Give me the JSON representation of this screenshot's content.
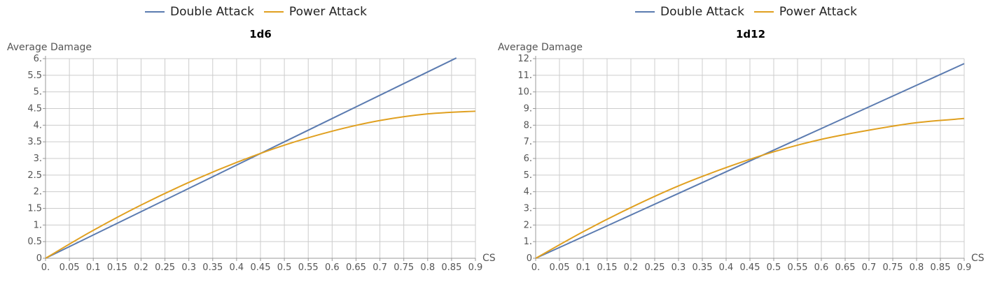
{
  "colors": {
    "double_attack": "#5b7bb0",
    "power_attack": "#e0a020",
    "grid": "#cccccc",
    "axis": "#999999"
  },
  "chart_data": [
    {
      "type": "line",
      "title": "1d6",
      "xlabel": "CS",
      "ylabel": "Average Damage",
      "grid": true,
      "legend_placement": "top",
      "xlim": [
        0,
        0.9
      ],
      "ylim": [
        0,
        6
      ],
      "x_ticks": [
        "0.",
        "0.05",
        "0.1",
        "0.15",
        "0.2",
        "0.25",
        "0.3",
        "0.35",
        "0.4",
        "0.45",
        "0.5",
        "0.55",
        "0.6",
        "0.65",
        "0.7",
        "0.75",
        "0.8",
        "0.85",
        "0.9"
      ],
      "y_ticks": [
        "0",
        "0.5",
        "1.",
        "1.5",
        "2.",
        "2.5",
        "3.",
        "3.5",
        "4.",
        "4.5",
        "5.",
        "5.5",
        "6."
      ],
      "series": [
        {
          "name": "Double Attack",
          "x": [
            0,
            0.1,
            0.2,
            0.3,
            0.4,
            0.5,
            0.6,
            0.7,
            0.8,
            0.86
          ],
          "y": [
            0,
            0.7,
            1.4,
            2.1,
            2.8,
            3.5,
            4.2,
            4.9,
            5.6,
            6.02
          ]
        },
        {
          "name": "Power Attack",
          "x": [
            0,
            0.1,
            0.2,
            0.3,
            0.4,
            0.5,
            0.6,
            0.7,
            0.8,
            0.9
          ],
          "y": [
            0,
            0.84,
            1.6,
            2.28,
            2.88,
            3.4,
            3.82,
            4.14,
            4.34,
            4.42
          ]
        }
      ]
    },
    {
      "type": "line",
      "title": "1d12",
      "xlabel": "CS",
      "ylabel": "Average Damage",
      "grid": true,
      "legend_placement": "top",
      "xlim": [
        0,
        0.9
      ],
      "ylim": [
        0,
        12
      ],
      "x_ticks": [
        "0.",
        "0.05",
        "0.1",
        "0.15",
        "0.2",
        "0.25",
        "0.3",
        "0.35",
        "0.4",
        "0.45",
        "0.5",
        "0.55",
        "0.6",
        "0.65",
        "0.7",
        "0.75",
        "0.8",
        "0.85",
        "0.9"
      ],
      "y_ticks": [
        "0",
        "1.",
        "2.",
        "3.",
        "4.",
        "5.",
        "6.",
        "7.",
        "8.",
        "9.",
        "10.",
        "11.",
        "12."
      ],
      "series": [
        {
          "name": "Double Attack",
          "x": [
            0,
            0.1,
            0.2,
            0.3,
            0.4,
            0.5,
            0.6,
            0.7,
            0.8,
            0.9
          ],
          "y": [
            0,
            1.3,
            2.6,
            3.9,
            5.2,
            6.5,
            7.8,
            9.1,
            10.4,
            11.7
          ]
        },
        {
          "name": "Power Attack",
          "x": [
            0,
            0.1,
            0.2,
            0.3,
            0.4,
            0.5,
            0.6,
            0.7,
            0.8,
            0.9
          ],
          "y": [
            0,
            1.6,
            3.05,
            4.35,
            5.45,
            6.4,
            7.15,
            7.7,
            8.15,
            8.4
          ]
        }
      ]
    }
  ]
}
